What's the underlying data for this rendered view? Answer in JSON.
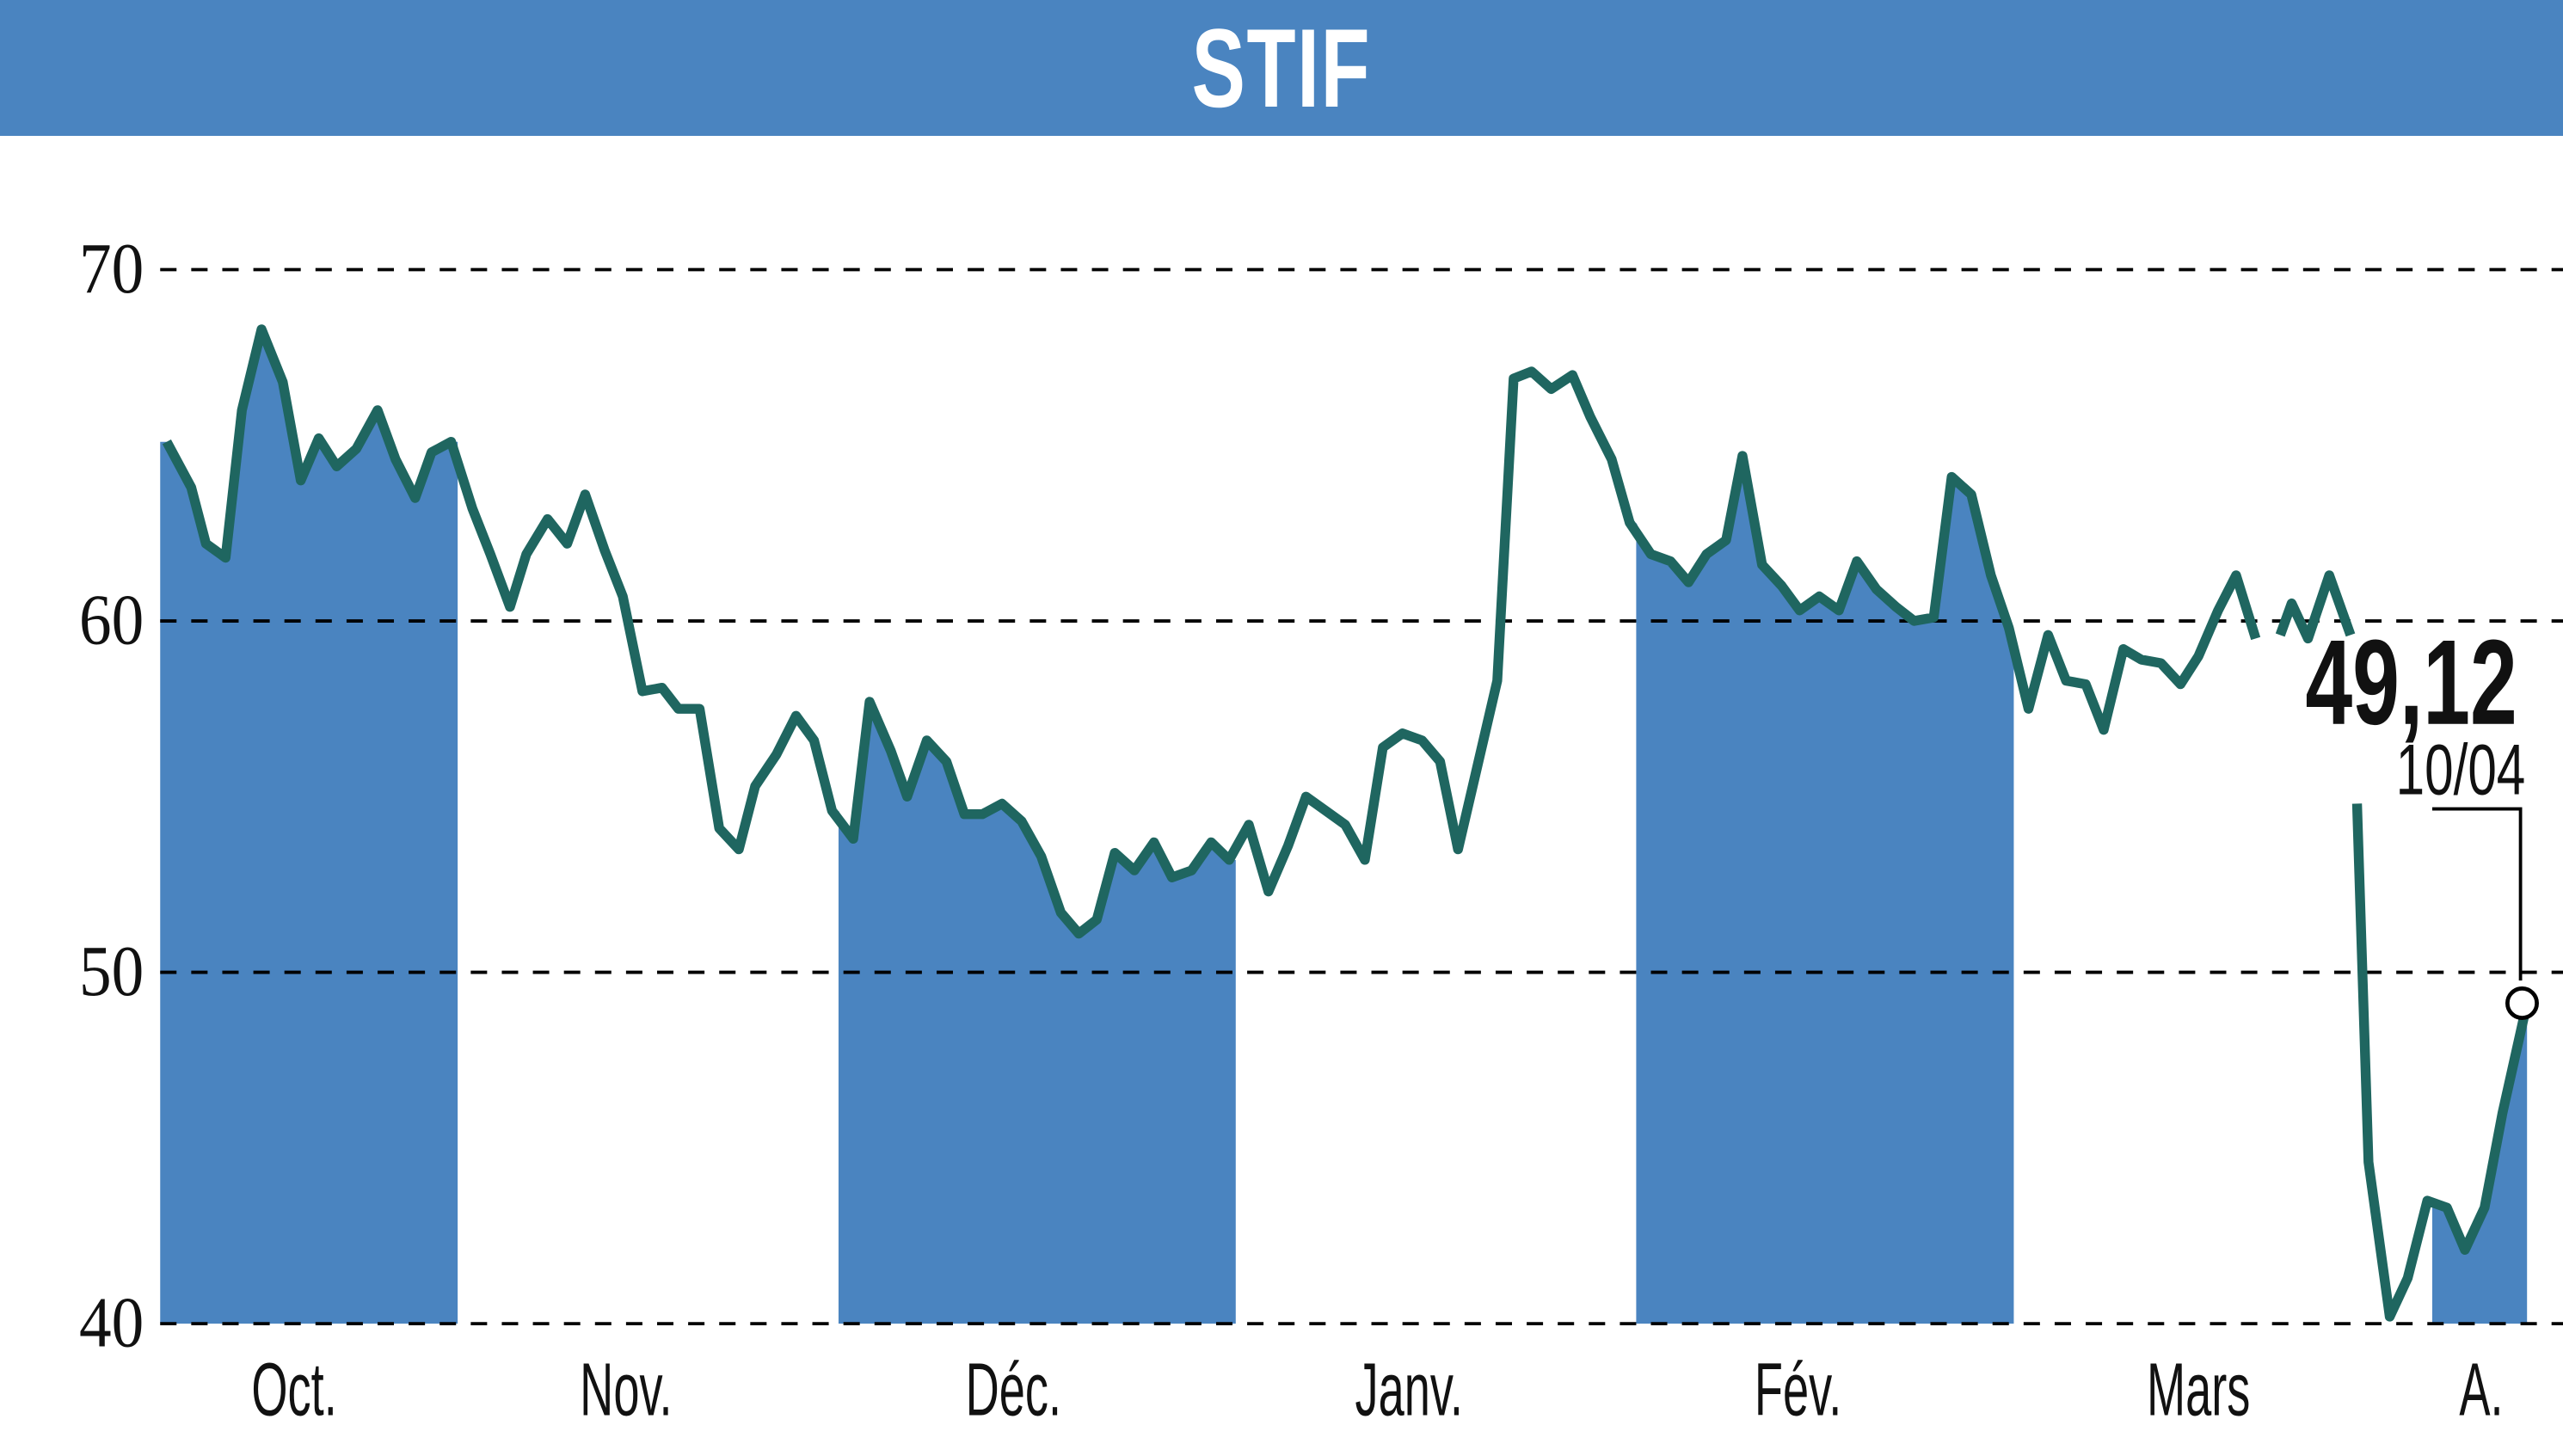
{
  "header": {
    "title": "STIF"
  },
  "annotation": {
    "last_value": "49,12",
    "last_date": "10/04"
  },
  "colors": {
    "header_bg": "#4a84c0",
    "band_fill": "#4a84c0",
    "line": "#1f6660",
    "grid": "#000000"
  },
  "chart_data": {
    "type": "line",
    "title": "STIF",
    "xlabel": "",
    "ylabel": "",
    "ylim": [
      40,
      70
    ],
    "yticks": [
      70,
      60,
      50,
      40
    ],
    "grid": "dashed horizontal",
    "months": [
      "Oct.",
      "Nov.",
      "Déc.",
      "Janv.",
      "Fév.",
      "Mars",
      "A."
    ],
    "shaded_months": [
      "Oct.",
      "Déc.",
      "Fév.",
      "A."
    ],
    "series": [
      {
        "name": "STIF",
        "points": [
          [
            102,
            65.1
          ],
          [
            117,
            63.8
          ],
          [
            126,
            62.2
          ],
          [
            138,
            61.8
          ],
          [
            148,
            66.0
          ],
          [
            160,
            68.3
          ],
          [
            173,
            66.8
          ],
          [
            184,
            64.0
          ],
          [
            195,
            65.2
          ],
          [
            206,
            64.4
          ],
          [
            218,
            64.9
          ],
          [
            231,
            66.0
          ],
          [
            242,
            64.6
          ],
          [
            254,
            63.5
          ],
          [
            264,
            64.8
          ],
          [
            276,
            65.1
          ],
          [
            289,
            63.2
          ],
          [
            300,
            61.9
          ],
          [
            312,
            60.4
          ],
          [
            322,
            61.9
          ],
          [
            335,
            62.9
          ],
          [
            347,
            62.2
          ],
          [
            358,
            63.6
          ],
          [
            370,
            62.0
          ],
          [
            381,
            60.7
          ],
          [
            393,
            58.0
          ],
          [
            405,
            58.1
          ],
          [
            415,
            57.5
          ],
          [
            428,
            57.5
          ],
          [
            440,
            54.1
          ],
          [
            452,
            53.5
          ],
          [
            462,
            55.3
          ],
          [
            475,
            56.2
          ],
          [
            487,
            57.3
          ],
          [
            498,
            56.6
          ],
          [
            509,
            54.6
          ],
          [
            522,
            53.8
          ],
          [
            532,
            57.7
          ],
          [
            545,
            56.3
          ],
          [
            555,
            55.0
          ],
          [
            567,
            56.6
          ],
          [
            579,
            56.0
          ],
          [
            590,
            54.5
          ],
          [
            601,
            54.5
          ],
          [
            613,
            54.8
          ],
          [
            625,
            54.3
          ],
          [
            637,
            53.3
          ],
          [
            649,
            51.7
          ],
          [
            660,
            51.1
          ],
          [
            671,
            51.5
          ],
          [
            682,
            53.4
          ],
          [
            694,
            52.9
          ],
          [
            706,
            53.7
          ],
          [
            717,
            52.7
          ],
          [
            729,
            52.9
          ],
          [
            741,
            53.7
          ],
          [
            752,
            53.2
          ],
          [
            764,
            54.2
          ],
          [
            776,
            52.3
          ],
          [
            788,
            53.6
          ],
          [
            799,
            55.0
          ],
          [
            811,
            54.6
          ],
          [
            823,
            54.2
          ],
          [
            835,
            53.2
          ],
          [
            846,
            56.4
          ],
          [
            858,
            56.8
          ],
          [
            870,
            56.6
          ],
          [
            881,
            56.0
          ],
          [
            892,
            53.5
          ],
          [
            904,
            55.9
          ],
          [
            916,
            58.3
          ],
          [
            926,
            66.9
          ],
          [
            937,
            67.1
          ],
          [
            949,
            66.6
          ],
          [
            962,
            67.0
          ],
          [
            973,
            65.8
          ],
          [
            986,
            64.6
          ],
          [
            997,
            62.8
          ],
          [
            1010,
            61.9
          ],
          [
            1022,
            61.7
          ],
          [
            1033,
            61.1
          ],
          [
            1044,
            61.9
          ],
          [
            1056,
            62.3
          ],
          [
            1066,
            64.7
          ],
          [
            1078,
            61.6
          ],
          [
            1090,
            61.0
          ],
          [
            1101,
            60.3
          ],
          [
            1113,
            60.7
          ],
          [
            1125,
            60.3
          ],
          [
            1136,
            61.7
          ],
          [
            1148,
            60.9
          ],
          [
            1160,
            60.4
          ],
          [
            1171,
            60.0
          ],
          [
            1183,
            60.1
          ],
          [
            1194,
            64.1
          ],
          [
            1206,
            63.6
          ],
          [
            1218,
            61.3
          ],
          [
            1229,
            59.8
          ],
          [
            1241,
            57.5
          ],
          [
            1253,
            59.6
          ],
          [
            1264,
            58.3
          ],
          [
            1276,
            58.2
          ],
          [
            1287,
            56.9
          ],
          [
            1299,
            59.2
          ],
          [
            1310,
            58.9
          ],
          [
            1322,
            58.8
          ],
          [
            1334,
            58.2
          ],
          [
            1345,
            59.0
          ],
          [
            1357,
            60.3
          ],
          [
            1368,
            61.3
          ],
          [
            1380,
            59.5
          ],
          null,
          [
            1395,
            59.6
          ],
          [
            1402,
            60.5
          ],
          [
            1412,
            59.5
          ],
          [
            1425,
            61.3
          ],
          [
            1438,
            59.6
          ],
          null,
          [
            1442,
            54.8
          ],
          [
            1449,
            44.6
          ],
          [
            1462,
            40.2
          ],
          [
            1473,
            41.3
          ],
          [
            1485,
            43.5
          ],
          [
            1497,
            43.3
          ],
          [
            1508,
            42.1
          ],
          [
            1520,
            43.3
          ],
          [
            1531,
            46.0
          ],
          [
            1546,
            49.12
          ]
        ]
      }
    ]
  }
}
